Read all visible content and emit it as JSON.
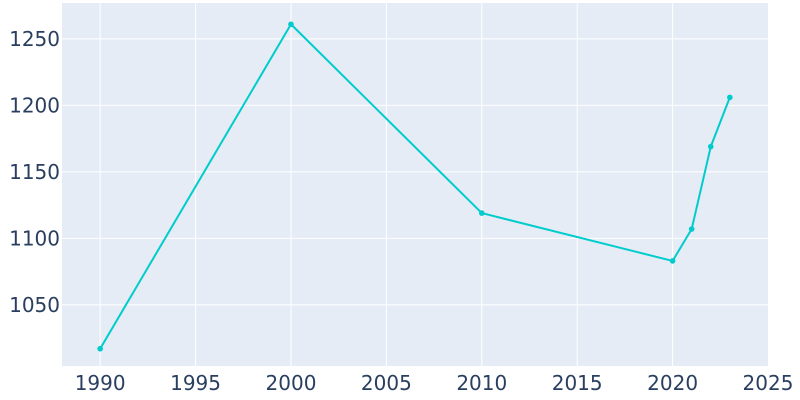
{
  "chart_data": {
    "type": "line",
    "title": "",
    "xlabel": "",
    "ylabel": "",
    "x": [
      1990,
      2000,
      2010,
      2020,
      2021,
      2022,
      2023
    ],
    "series": [
      {
        "values": [
          1017,
          1261,
          1119,
          1083,
          1107,
          1169,
          1206
        ]
      }
    ],
    "xlim": [
      1988,
      2025
    ],
    "ylim": [
      1004,
      1277
    ],
    "x_ticks": [
      1990,
      1995,
      2000,
      2005,
      2010,
      2015,
      2020,
      2025
    ],
    "y_ticks": [
      1050,
      1100,
      1150,
      1200,
      1250
    ],
    "grid": true,
    "legend": "none",
    "colors": {
      "line": "#00cccc",
      "plot_background": "#e5ecf6",
      "grid": "#ffffff",
      "tick_text": "#2a3f5f"
    }
  }
}
